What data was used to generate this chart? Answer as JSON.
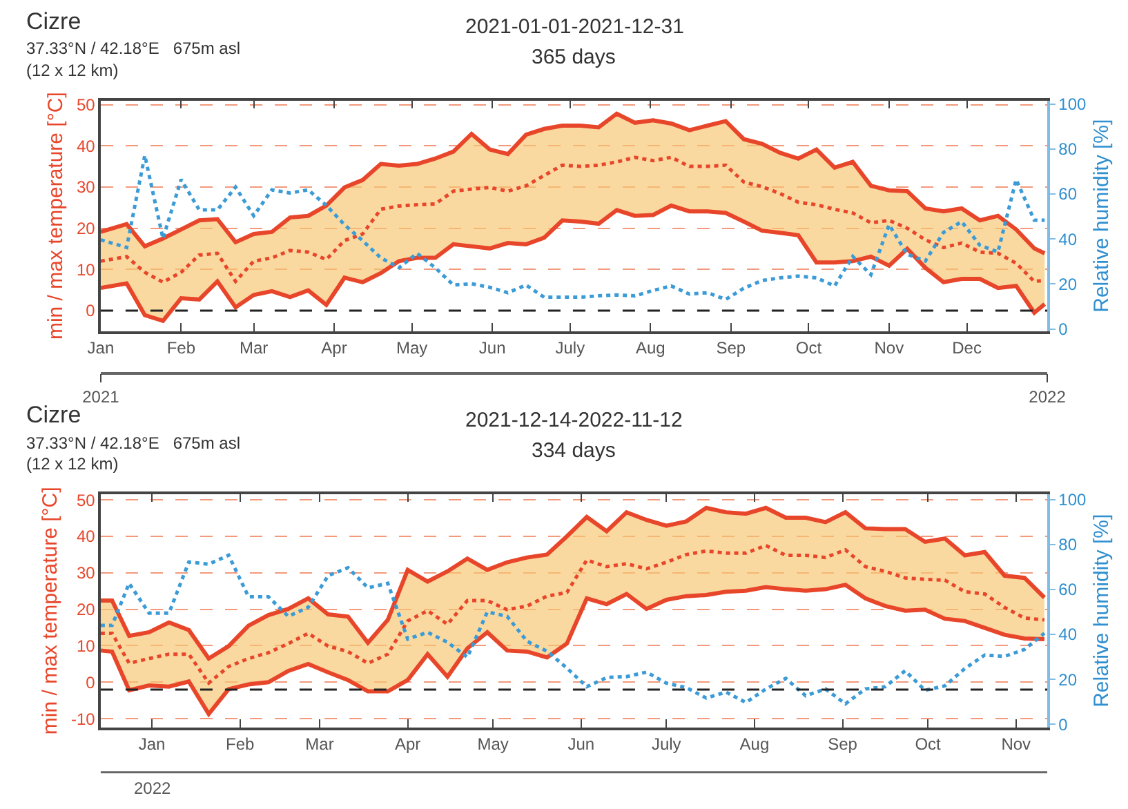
{
  "chart_data": [
    {
      "type": "line",
      "title": "2021-01-01-2021-12-31",
      "subtitle": "365 days",
      "annotations": [
        "Cizre",
        "37.33°N / 42.18°E   675m asl",
        "(12 x 12 km)"
      ],
      "ylabel": "min / max temperature [°C]",
      "y2label": "Relative humidity [%]",
      "x": [
        "2021-01-01",
        "2021-01-11",
        "2021-01-18",
        "2021-01-25",
        "2021-02-01",
        "2021-02-08",
        "2021-02-15",
        "2021-02-22",
        "2021-03-01",
        "2021-03-08",
        "2021-03-15",
        "2021-03-22",
        "2021-03-29",
        "2021-04-05",
        "2021-04-12",
        "2021-04-19",
        "2021-04-26",
        "2021-05-03",
        "2021-05-10",
        "2021-05-17",
        "2021-05-24",
        "2021-05-31",
        "2021-06-07",
        "2021-06-14",
        "2021-06-21",
        "2021-06-28",
        "2021-07-05",
        "2021-07-12",
        "2021-07-19",
        "2021-07-26",
        "2021-08-02",
        "2021-08-09",
        "2021-08-16",
        "2021-08-23",
        "2021-08-30",
        "2021-09-06",
        "2021-09-13",
        "2021-09-20",
        "2021-09-27",
        "2021-10-04",
        "2021-10-11",
        "2021-10-18",
        "2021-10-25",
        "2021-11-01",
        "2021-11-08",
        "2021-11-15",
        "2021-11-22",
        "2021-11-29",
        "2021-12-06",
        "2021-12-13",
        "2021-12-20",
        "2021-12-27",
        "2021-12-31"
      ],
      "series": [
        {
          "color": "#e8462a",
          "line_style": "solid",
          "values": [
            19.1,
            21.0,
            15.6,
            17.5,
            19.7,
            21.9,
            22.2,
            16.6,
            18.6,
            19.1,
            22.6,
            23.0,
            25.5,
            29.9,
            31.7,
            35.6,
            35.2,
            35.6,
            36.9,
            38.6,
            42.9,
            39.1,
            38.0,
            42.7,
            44.1,
            44.9,
            44.9,
            44.5,
            47.8,
            45.6,
            46.2,
            45.4,
            43.8,
            44.9,
            46.0,
            41.6,
            40.5,
            38.3,
            36.9,
            39.1,
            34.7,
            36.1,
            30.3,
            29.2,
            29.0,
            24.8,
            24.1,
            24.8,
            21.9,
            23.0,
            19.7,
            15.1,
            13.9
          ]
        },
        {
          "color": "#e8462a",
          "line_style": "solid",
          "values": [
            5.5,
            6.6,
            -1.1,
            -2.5,
            3.0,
            2.7,
            7.1,
            0.8,
            3.8,
            4.7,
            3.3,
            4.9,
            1.4,
            8.0,
            6.9,
            9.1,
            12.0,
            12.8,
            12.8,
            16.1,
            15.6,
            15.1,
            16.4,
            16.1,
            17.7,
            21.9,
            21.6,
            21.1,
            24.4,
            23.0,
            23.2,
            25.5,
            24.1,
            24.1,
            23.7,
            21.6,
            19.4,
            18.9,
            18.3,
            11.7,
            11.7,
            12.0,
            13.1,
            10.9,
            15.0,
            10.4,
            6.9,
            7.7,
            7.7,
            5.5,
            6.0,
            -0.5,
            1.6
          ]
        },
        {
          "color": "#e8462a",
          "line_style": "dotted",
          "values": [
            12.0,
            13.1,
            9.3,
            6.9,
            9.3,
            13.5,
            13.9,
            7.1,
            12.0,
            12.8,
            14.6,
            14.2,
            12.4,
            17.0,
            18.6,
            24.6,
            25.4,
            25.7,
            25.9,
            29.0,
            29.5,
            29.9,
            29.0,
            30.3,
            32.8,
            35.3,
            35.0,
            35.3,
            36.1,
            37.2,
            36.4,
            37.2,
            35.0,
            35.0,
            35.3,
            31.2,
            30.1,
            28.4,
            26.3,
            25.7,
            24.6,
            23.7,
            21.3,
            21.9,
            20.0,
            17.2,
            15.3,
            16.4,
            14.2,
            13.9,
            11.5,
            7.1,
            7.3
          ],
          "lower": [
            5.5,
            6.6,
            -1.1,
            -2.5,
            3.0,
            2.7,
            7.1,
            0.8,
            3.8,
            4.7,
            3.3,
            4.9,
            1.4,
            8.0,
            6.9,
            9.1,
            12.0,
            12.8,
            12.8,
            16.1,
            15.6,
            15.1,
            16.4,
            16.1,
            17.7,
            21.9,
            21.6,
            21.1,
            24.4,
            23.0,
            23.2,
            25.5,
            24.1,
            24.1,
            23.7,
            21.6,
            19.4,
            18.9,
            18.3,
            11.7,
            11.7,
            12.0,
            13.1,
            10.9,
            15.0,
            10.4,
            6.9,
            7.7,
            7.7,
            5.5,
            6.0,
            -0.5,
            1.6
          ],
          "upper": [
            19.1,
            21.0,
            15.6,
            17.5,
            19.7,
            21.9,
            22.2,
            16.6,
            18.6,
            19.1,
            22.6,
            23.0,
            25.5,
            29.9,
            31.7,
            35.6,
            35.2,
            35.6,
            36.9,
            38.6,
            42.9,
            39.1,
            38.0,
            42.7,
            44.1,
            44.9,
            44.9,
            44.5,
            47.8,
            45.6,
            46.2,
            45.4,
            43.8,
            44.9,
            46.0,
            41.6,
            40.5,
            38.3,
            36.9,
            39.1,
            34.7,
            36.1,
            30.3,
            29.2,
            29.0,
            24.8,
            24.1,
            24.8,
            21.9,
            23.0,
            19.7,
            15.1,
            13.9
          ]
        },
        {
          "color": "#3b9bd6",
          "line_style": "dotted",
          "axis": "y2",
          "values": [
            39.6,
            36.2,
            77.1,
            40.2,
            66.4,
            52.9,
            52.9,
            63.0,
            50.3,
            61.8,
            60.4,
            61.8,
            54.9,
            46.3,
            39.2,
            31.6,
            27.2,
            33.6,
            27.2,
            19.5,
            20.1,
            18.5,
            16.1,
            19.5,
            14.1,
            14.1,
            14.1,
            14.7,
            15.1,
            14.7,
            17.1,
            19.1,
            15.5,
            16.1,
            13.1,
            18.1,
            21.5,
            22.7,
            23.5,
            22.7,
            19.1,
            32.2,
            24.1,
            46.3,
            33.2,
            30.2,
            42.9,
            47.7,
            37.2,
            34.2,
            66.4,
            48.3,
            48.3
          ]
        }
      ],
      "xlim": [
        "2021-01-01",
        "2022-01-01"
      ],
      "xticks": [
        {
          "value": "2021-01-01",
          "label": "Jan"
        },
        {
          "value": "2021-02-01",
          "label": "Feb"
        },
        {
          "value": "2021-03-01",
          "label": "Mar"
        },
        {
          "value": "2021-04-01",
          "label": "Apr"
        },
        {
          "value": "2021-05-01",
          "label": "May"
        },
        {
          "value": "2021-06-01",
          "label": "Jun"
        },
        {
          "value": "2021-07-01",
          "label": "July"
        },
        {
          "value": "2021-08-01",
          "label": "Aug"
        },
        {
          "value": "2021-09-01",
          "label": "Sep"
        },
        {
          "value": "2021-10-01",
          "label": "Oct"
        },
        {
          "value": "2021-11-01",
          "label": "Nov"
        },
        {
          "value": "2021-12-01",
          "label": "Dec"
        }
      ],
      "x2lim": [
        "2021-01-01",
        "2022-01-01"
      ],
      "x2ticks": [
        {
          "value": "2021-01-01",
          "label": "2021"
        },
        {
          "value": "2022-01-01",
          "label": "2022"
        }
      ],
      "ylim": [
        -5,
        51
      ],
      "yticks": [
        0,
        10,
        20,
        30,
        40,
        50
      ],
      "y2lim": [
        -1,
        101.5
      ],
      "y2ticks": [
        0,
        20,
        40,
        60,
        80,
        100
      ],
      "ref_lines": [
        {
          "axis": "y",
          "value": 0,
          "color": "#222222",
          "line_style": "dashed"
        }
      ],
      "grid": "y"
    },
    {
      "type": "line",
      "title": "2021-12-14-2022-11-12",
      "subtitle": "334 days",
      "annotations": [
        "Cizre",
        "37.33°N / 42.18°E   675m asl",
        "(12 x 12 km)",
        "2022"
      ],
      "ylabel": "min / max temperature [°C]",
      "y2label": "Relative humidity [%]",
      "x": [
        "2021-12-14",
        "2021-12-18",
        "2021-12-24",
        "2021-12-31",
        "2022-01-07",
        "2022-01-14",
        "2022-01-21",
        "2022-01-28",
        "2022-02-04",
        "2022-02-11",
        "2022-02-18",
        "2022-02-25",
        "2022-03-04",
        "2022-03-11",
        "2022-03-18",
        "2022-03-25",
        "2022-04-01",
        "2022-04-08",
        "2022-04-15",
        "2022-04-22",
        "2022-04-29",
        "2022-05-06",
        "2022-05-13",
        "2022-05-20",
        "2022-05-27",
        "2022-06-03",
        "2022-06-10",
        "2022-06-17",
        "2022-06-24",
        "2022-07-01",
        "2022-07-08",
        "2022-07-15",
        "2022-07-22",
        "2022-07-29",
        "2022-08-05",
        "2022-08-12",
        "2022-08-19",
        "2022-08-26",
        "2022-09-02",
        "2022-09-09",
        "2022-09-16",
        "2022-09-23",
        "2022-09-30",
        "2022-10-07",
        "2022-10-14",
        "2022-10-21",
        "2022-10-28",
        "2022-11-04",
        "2022-11-11"
      ],
      "series": [
        {
          "color": "#e8462a",
          "line_style": "solid",
          "values": [
            22.4,
            22.4,
            12.7,
            13.7,
            16.4,
            14.3,
            6.5,
            9.9,
            15.5,
            18.4,
            20.1,
            23.0,
            18.6,
            18.0,
            10.8,
            17.1,
            30.8,
            27.6,
            30.4,
            33.9,
            30.8,
            32.9,
            34.2,
            35.0,
            40.0,
            45.3,
            41.4,
            46.6,
            44.5,
            42.9,
            44.1,
            47.8,
            46.6,
            46.2,
            47.8,
            45.1,
            45.1,
            43.9,
            46.6,
            42.2,
            42.0,
            42.0,
            38.5,
            39.4,
            34.8,
            35.7,
            29.2,
            28.6,
            23.2
          ]
        },
        {
          "color": "#e8462a",
          "line_style": "solid",
          "values": [
            8.7,
            8.4,
            -2.2,
            -0.9,
            -1.2,
            0.2,
            -8.7,
            -1.9,
            -0.6,
            0.0,
            3.1,
            5.0,
            2.7,
            0.6,
            -2.5,
            -2.5,
            0.6,
            7.7,
            1.5,
            9.3,
            13.7,
            8.7,
            8.4,
            6.8,
            10.6,
            23.0,
            21.4,
            24.2,
            20.1,
            22.6,
            23.6,
            23.9,
            24.8,
            25.1,
            26.1,
            25.5,
            25.1,
            25.5,
            26.7,
            23.0,
            20.9,
            19.6,
            19.9,
            17.4,
            16.8,
            14.9,
            13.0,
            12.0,
            11.8
          ]
        },
        {
          "color": "#e8462a",
          "line_style": "dotted",
          "values": [
            13.4,
            13.4,
            5.2,
            6.5,
            7.7,
            7.7,
            -0.2,
            4.3,
            6.5,
            8.1,
            10.6,
            13.4,
            9.9,
            8.4,
            5.2,
            7.7,
            16.8,
            19.6,
            15.9,
            22.4,
            22.4,
            19.9,
            20.9,
            23.6,
            24.6,
            33.5,
            31.7,
            32.5,
            31.1,
            32.9,
            35.0,
            36.0,
            35.4,
            35.4,
            37.5,
            34.8,
            34.8,
            34.2,
            36.3,
            31.7,
            30.4,
            28.6,
            28.2,
            28.0,
            24.8,
            24.2,
            20.5,
            17.6,
            17.1
          ],
          "lower": [
            8.7,
            8.4,
            -2.2,
            -0.9,
            -1.2,
            0.2,
            -8.7,
            -1.9,
            -0.6,
            0.0,
            3.1,
            5.0,
            2.7,
            0.6,
            -2.5,
            -2.5,
            0.6,
            7.7,
            1.5,
            9.3,
            13.7,
            8.7,
            8.4,
            6.8,
            10.6,
            23.0,
            21.4,
            24.2,
            20.1,
            22.6,
            23.6,
            23.9,
            24.8,
            25.1,
            26.1,
            25.5,
            25.1,
            25.5,
            26.7,
            23.0,
            20.9,
            19.6,
            19.9,
            17.4,
            16.8,
            14.9,
            13.0,
            12.0,
            11.8
          ],
          "upper": [
            22.4,
            22.4,
            12.7,
            13.7,
            16.4,
            14.3,
            6.5,
            9.9,
            15.5,
            18.4,
            20.1,
            23.0,
            18.6,
            18.0,
            10.8,
            17.1,
            30.8,
            27.6,
            30.4,
            33.9,
            30.8,
            32.9,
            34.2,
            35.0,
            40.0,
            45.3,
            41.4,
            46.6,
            44.5,
            42.9,
            44.1,
            47.8,
            46.6,
            46.2,
            47.8,
            45.1,
            45.1,
            43.9,
            46.6,
            42.2,
            42.0,
            42.0,
            38.5,
            39.4,
            34.8,
            35.7,
            29.2,
            28.6,
            23.2
          ]
        },
        {
          "color": "#3b9bd6",
          "line_style": "dotted",
          "axis": "y2",
          "values": [
            44.0,
            44.0,
            62.7,
            49.4,
            49.4,
            72.2,
            71.2,
            75.2,
            56.7,
            56.7,
            48.0,
            52.0,
            66.1,
            69.6,
            60.7,
            62.7,
            37.9,
            40.9,
            36.5,
            29.8,
            50.0,
            48.0,
            36.9,
            32.5,
            25.0,
            16.7,
            20.8,
            21.2,
            23.2,
            18.3,
            16.3,
            11.7,
            14.3,
            9.7,
            15.7,
            20.4,
            12.7,
            15.7,
            9.1,
            15.7,
            16.7,
            23.8,
            15.1,
            17.1,
            24.8,
            30.8,
            30.2,
            33.3,
            40.5
          ]
        }
      ],
      "xlim": [
        "2021-12-14",
        "2022-11-12"
      ],
      "xticks": [
        {
          "value": "2022-01-01",
          "label": "Jan"
        },
        {
          "value": "2022-02-01",
          "label": "Feb"
        },
        {
          "value": "2022-03-01",
          "label": "Mar"
        },
        {
          "value": "2022-04-01",
          "label": "Apr"
        },
        {
          "value": "2022-05-01",
          "label": "May"
        },
        {
          "value": "2022-06-01",
          "label": "Jun"
        },
        {
          "value": "2022-07-01",
          "label": "July"
        },
        {
          "value": "2022-08-01",
          "label": "Aug"
        },
        {
          "value": "2022-09-01",
          "label": "Sep"
        },
        {
          "value": "2022-10-01",
          "label": "Oct"
        },
        {
          "value": "2022-11-01",
          "label": "Nov"
        }
      ],
      "ylim": [
        -12.4,
        51.6
      ],
      "yticks": [
        -10,
        0,
        10,
        20,
        30,
        40,
        50
      ],
      "y2lim": [
        -1.4,
        102.4
      ],
      "y2ticks": [
        0,
        20,
        40,
        60,
        80,
        100
      ],
      "ref_lines": [
        {
          "axis": "y",
          "value": -2,
          "color": "#222222",
          "line_style": "dashed"
        }
      ],
      "grid": "y"
    }
  ]
}
